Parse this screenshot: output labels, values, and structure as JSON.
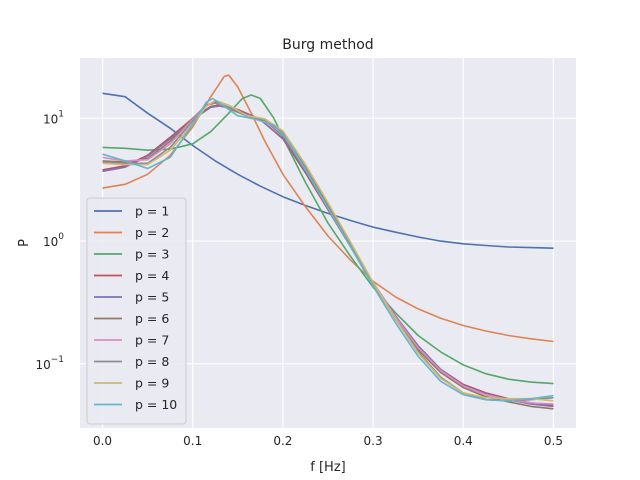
{
  "chart_data": {
    "type": "line",
    "title": "Burg method",
    "xlabel": "f [Hz]",
    "ylabel": "P",
    "xlim": [
      -0.025,
      0.525
    ],
    "ylim": [
      0.03,
      31
    ],
    "y_scale": "log",
    "grid": true,
    "legend_position": "lower-left",
    "x_ticks": [
      {
        "value": 0.0,
        "label": "0.0"
      },
      {
        "value": 0.1,
        "label": "0.1"
      },
      {
        "value": 0.2,
        "label": "0.2"
      },
      {
        "value": 0.3,
        "label": "0.3"
      },
      {
        "value": 0.4,
        "label": "0.4"
      },
      {
        "value": 0.5,
        "label": "0.5"
      }
    ],
    "y_ticks": [
      {
        "value": 0.1,
        "base": "10",
        "exp": "−1"
      },
      {
        "value": 1,
        "base": "10",
        "exp": "0"
      },
      {
        "value": 10,
        "base": "10",
        "exp": "1"
      }
    ],
    "series": [
      {
        "name": "p = 1",
        "color": "#4c72b0",
        "points": [
          [
            0,
            16
          ],
          [
            0.025,
            15
          ],
          [
            0.05,
            11
          ],
          [
            0.075,
            8.3
          ],
          [
            0.1,
            6
          ],
          [
            0.125,
            4.5
          ],
          [
            0.15,
            3.5
          ],
          [
            0.175,
            2.8
          ],
          [
            0.2,
            2.3
          ],
          [
            0.225,
            1.95
          ],
          [
            0.25,
            1.68
          ],
          [
            0.275,
            1.47
          ],
          [
            0.3,
            1.3
          ],
          [
            0.325,
            1.18
          ],
          [
            0.35,
            1.08
          ],
          [
            0.375,
            1.0
          ],
          [
            0.4,
            0.95
          ],
          [
            0.425,
            0.92
          ],
          [
            0.45,
            0.895
          ],
          [
            0.475,
            0.885
          ],
          [
            0.5,
            0.875
          ]
        ]
      },
      {
        "name": "p = 2",
        "color": "#dd8452",
        "points": [
          [
            0,
            2.7
          ],
          [
            0.025,
            2.9
          ],
          [
            0.05,
            3.5
          ],
          [
            0.075,
            5
          ],
          [
            0.1,
            8.5
          ],
          [
            0.12,
            15
          ],
          [
            0.135,
            22
          ],
          [
            0.14,
            22.5
          ],
          [
            0.15,
            18
          ],
          [
            0.165,
            11
          ],
          [
            0.18,
            6.5
          ],
          [
            0.2,
            3.5
          ],
          [
            0.225,
            1.9
          ],
          [
            0.25,
            1.1
          ],
          [
            0.275,
            0.7
          ],
          [
            0.3,
            0.47
          ],
          [
            0.325,
            0.35
          ],
          [
            0.35,
            0.28
          ],
          [
            0.375,
            0.235
          ],
          [
            0.4,
            0.205
          ],
          [
            0.425,
            0.185
          ],
          [
            0.45,
            0.17
          ],
          [
            0.475,
            0.16
          ],
          [
            0.5,
            0.152
          ]
        ]
      },
      {
        "name": "p = 3",
        "color": "#55a868",
        "points": [
          [
            0,
            5.8
          ],
          [
            0.025,
            5.7
          ],
          [
            0.05,
            5.5
          ],
          [
            0.075,
            5.6
          ],
          [
            0.1,
            6.2
          ],
          [
            0.12,
            7.8
          ],
          [
            0.14,
            11
          ],
          [
            0.155,
            14.5
          ],
          [
            0.165,
            15.5
          ],
          [
            0.175,
            14.5
          ],
          [
            0.19,
            10
          ],
          [
            0.2,
            7
          ],
          [
            0.225,
            3
          ],
          [
            0.25,
            1.4
          ],
          [
            0.275,
            0.75
          ],
          [
            0.3,
            0.42
          ],
          [
            0.325,
            0.26
          ],
          [
            0.35,
            0.17
          ],
          [
            0.375,
            0.125
          ],
          [
            0.4,
            0.098
          ],
          [
            0.425,
            0.083
          ],
          [
            0.45,
            0.075
          ],
          [
            0.475,
            0.071
          ],
          [
            0.5,
            0.069
          ]
        ]
      },
      {
        "name": "p = 4",
        "color": "#c44e52",
        "points": [
          [
            0,
            3.8
          ],
          [
            0.025,
            4.1
          ],
          [
            0.05,
            5
          ],
          [
            0.075,
            7
          ],
          [
            0.1,
            10
          ],
          [
            0.12,
            12.5
          ],
          [
            0.13,
            12.8
          ],
          [
            0.15,
            11.8
          ],
          [
            0.175,
            9.8
          ],
          [
            0.2,
            6.8
          ],
          [
            0.225,
            3.6
          ],
          [
            0.25,
            1.8
          ],
          [
            0.275,
            0.9
          ],
          [
            0.3,
            0.45
          ],
          [
            0.325,
            0.24
          ],
          [
            0.35,
            0.14
          ],
          [
            0.375,
            0.09
          ],
          [
            0.4,
            0.068
          ],
          [
            0.425,
            0.058
          ],
          [
            0.45,
            0.052
          ],
          [
            0.475,
            0.048
          ],
          [
            0.5,
            0.046
          ]
        ]
      },
      {
        "name": "p = 5",
        "color": "#8172b3",
        "points": [
          [
            0,
            3.7
          ],
          [
            0.025,
            4.0
          ],
          [
            0.05,
            4.9
          ],
          [
            0.075,
            6.8
          ],
          [
            0.1,
            9.8
          ],
          [
            0.12,
            12.3
          ],
          [
            0.13,
            12.6
          ],
          [
            0.15,
            11.6
          ],
          [
            0.175,
            9.7
          ],
          [
            0.2,
            6.9
          ],
          [
            0.225,
            3.7
          ],
          [
            0.25,
            1.85
          ],
          [
            0.275,
            0.92
          ],
          [
            0.3,
            0.46
          ],
          [
            0.325,
            0.245
          ],
          [
            0.35,
            0.14
          ],
          [
            0.375,
            0.09
          ],
          [
            0.4,
            0.067
          ],
          [
            0.425,
            0.057
          ],
          [
            0.45,
            0.051
          ],
          [
            0.475,
            0.047
          ],
          [
            0.5,
            0.045
          ]
        ]
      },
      {
        "name": "p = 6",
        "color": "#937860",
        "points": [
          [
            0,
            4.5
          ],
          [
            0.025,
            4.4
          ],
          [
            0.05,
            4.7
          ],
          [
            0.075,
            6.5
          ],
          [
            0.1,
            10
          ],
          [
            0.115,
            12.8
          ],
          [
            0.125,
            13.3
          ],
          [
            0.14,
            12
          ],
          [
            0.16,
            10.5
          ],
          [
            0.18,
            9.6
          ],
          [
            0.2,
            7.2
          ],
          [
            0.225,
            3.8
          ],
          [
            0.25,
            1.9
          ],
          [
            0.275,
            0.93
          ],
          [
            0.3,
            0.45
          ],
          [
            0.325,
            0.235
          ],
          [
            0.35,
            0.13
          ],
          [
            0.375,
            0.085
          ],
          [
            0.4,
            0.064
          ],
          [
            0.425,
            0.054
          ],
          [
            0.45,
            0.049
          ],
          [
            0.475,
            0.045
          ],
          [
            0.5,
            0.043
          ]
        ]
      },
      {
        "name": "p = 7",
        "color": "#da8bc3",
        "points": [
          [
            0,
            4.8
          ],
          [
            0.025,
            4.5
          ],
          [
            0.05,
            4.6
          ],
          [
            0.075,
            6.2
          ],
          [
            0.1,
            9.8
          ],
          [
            0.115,
            12.8
          ],
          [
            0.125,
            13.5
          ],
          [
            0.14,
            12.2
          ],
          [
            0.16,
            10.6
          ],
          [
            0.18,
            9.7
          ],
          [
            0.2,
            7.4
          ],
          [
            0.225,
            3.9
          ],
          [
            0.25,
            1.95
          ],
          [
            0.275,
            0.95
          ],
          [
            0.3,
            0.46
          ],
          [
            0.325,
            0.24
          ],
          [
            0.35,
            0.135
          ],
          [
            0.375,
            0.088
          ],
          [
            0.4,
            0.066
          ],
          [
            0.425,
            0.056
          ],
          [
            0.45,
            0.051
          ],
          [
            0.475,
            0.048
          ],
          [
            0.5,
            0.047
          ]
        ]
      },
      {
        "name": "p = 8",
        "color": "#8c8c8c",
        "points": [
          [
            0,
            4.4
          ],
          [
            0.025,
            4.3
          ],
          [
            0.05,
            4.3
          ],
          [
            0.075,
            5.8
          ],
          [
            0.1,
            9.5
          ],
          [
            0.115,
            12.8
          ],
          [
            0.125,
            13.6
          ],
          [
            0.14,
            12.3
          ],
          [
            0.16,
            10.4
          ],
          [
            0.18,
            9.8
          ],
          [
            0.2,
            7.6
          ],
          [
            0.225,
            4
          ],
          [
            0.25,
            1.95
          ],
          [
            0.275,
            0.95
          ],
          [
            0.3,
            0.45
          ],
          [
            0.325,
            0.23
          ],
          [
            0.35,
            0.125
          ],
          [
            0.375,
            0.078
          ],
          [
            0.4,
            0.058
          ],
          [
            0.425,
            0.051
          ],
          [
            0.45,
            0.05
          ],
          [
            0.475,
            0.051
          ],
          [
            0.5,
            0.053
          ]
        ]
      },
      {
        "name": "p = 9",
        "color": "#ccb974",
        "points": [
          [
            0,
            4.3
          ],
          [
            0.025,
            4.2
          ],
          [
            0.05,
            4.2
          ],
          [
            0.075,
            5.5
          ],
          [
            0.1,
            9
          ],
          [
            0.115,
            12.5
          ],
          [
            0.125,
            14
          ],
          [
            0.14,
            12.8
          ],
          [
            0.16,
            10.5
          ],
          [
            0.18,
            9.9
          ],
          [
            0.2,
            7.9
          ],
          [
            0.225,
            4.2
          ],
          [
            0.25,
            2.05
          ],
          [
            0.275,
            0.98
          ],
          [
            0.3,
            0.46
          ],
          [
            0.325,
            0.23
          ],
          [
            0.35,
            0.122
          ],
          [
            0.375,
            0.076
          ],
          [
            0.4,
            0.058
          ],
          [
            0.425,
            0.053
          ],
          [
            0.45,
            0.052
          ],
          [
            0.475,
            0.052
          ],
          [
            0.5,
            0.05
          ]
        ]
      },
      {
        "name": "p = 10",
        "color": "#64b5cd",
        "points": [
          [
            0,
            5.1
          ],
          [
            0.025,
            4.5
          ],
          [
            0.05,
            3.9
          ],
          [
            0.075,
            4.8
          ],
          [
            0.1,
            9
          ],
          [
            0.115,
            13.5
          ],
          [
            0.122,
            14.5
          ],
          [
            0.135,
            12.5
          ],
          [
            0.15,
            10.5
          ],
          [
            0.17,
            9.8
          ],
          [
            0.19,
            8.8
          ],
          [
            0.205,
            6.6
          ],
          [
            0.225,
            3.8
          ],
          [
            0.25,
            1.85
          ],
          [
            0.275,
            0.9
          ],
          [
            0.3,
            0.43
          ],
          [
            0.325,
            0.215
          ],
          [
            0.35,
            0.115
          ],
          [
            0.375,
            0.072
          ],
          [
            0.4,
            0.056
          ],
          [
            0.425,
            0.051
          ],
          [
            0.45,
            0.05
          ],
          [
            0.475,
            0.052
          ],
          [
            0.5,
            0.055
          ]
        ]
      }
    ]
  }
}
